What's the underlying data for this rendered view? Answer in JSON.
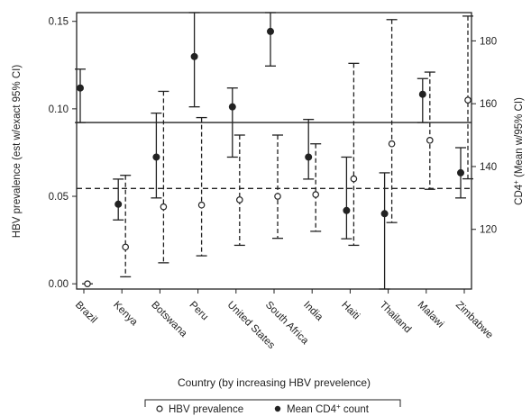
{
  "chart_data": {
    "type": "scatter",
    "title": "",
    "xlabel": "Country (by increasing HBV prevelence)",
    "ylabel_left": "HBV prevalence (est w/exact 95% CI)",
    "ylabel_right_main": "CD4",
    "ylabel_right_sup": "+",
    "ylabel_right_rest": " (Mean w/95% CI)",
    "ylim_left": [
      -0.003,
      0.155
    ],
    "yticks_left": [
      "0.00",
      "0.05",
      "0.10",
      "0.15"
    ],
    "ylim_right": [
      101,
      189
    ],
    "yticks_right": [
      "120",
      "140",
      "160",
      "180"
    ],
    "categories": [
      "Brazil",
      "Kenya",
      "Botswana",
      "Peru",
      "United States",
      "South Africa",
      "India",
      "Haiti",
      "Thailand",
      "Malawi",
      "Zimbabwe"
    ],
    "series": [
      {
        "name": "HBV prevalence",
        "axis": "left",
        "marker": "open-circle",
        "line_style": "dashed",
        "estimate": [
          0.0,
          0.021,
          0.044,
          0.045,
          0.048,
          0.05,
          0.051,
          0.06,
          0.08,
          0.082,
          0.105
        ],
        "lower": [
          0.0,
          0.004,
          0.012,
          0.016,
          0.022,
          0.026,
          0.03,
          0.022,
          0.035,
          0.054,
          0.06
        ],
        "upper": [
          0.0,
          0.062,
          0.11,
          0.095,
          0.085,
          0.085,
          0.08,
          0.126,
          0.151,
          0.121,
          0.153
        ]
      },
      {
        "name": "Mean CD4",
        "name_sup": "+",
        "name_rest": " count",
        "axis": "right",
        "marker": "filled-circle",
        "line_style": "solid",
        "estimate": [
          165,
          128,
          143,
          175,
          159,
          183,
          143,
          126,
          125,
          163,
          138
        ],
        "lower": [
          154,
          123,
          130,
          159,
          143,
          172,
          136,
          117,
          101,
          154,
          130
        ],
        "upper": [
          171,
          136,
          157,
          189,
          165,
          189,
          155,
          143,
          138,
          168,
          146
        ]
      }
    ],
    "reference_lines": [
      {
        "series": "Mean CD4",
        "axis": "right",
        "style": "solid",
        "value": 154
      },
      {
        "series": "HBV prevalence",
        "axis": "left",
        "style": "dashed",
        "value": 0.0545
      }
    ],
    "grid": false,
    "legend_position": "bottom"
  },
  "colors": {
    "ink": "#222222",
    "background": "#ffffff"
  }
}
